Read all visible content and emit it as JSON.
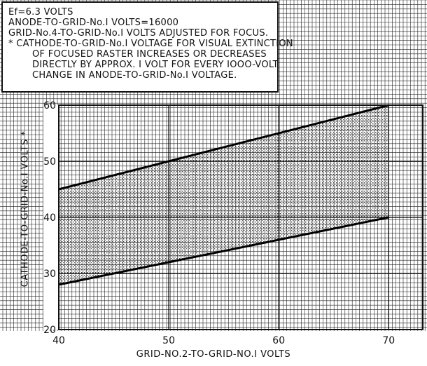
{
  "notes": {
    "line1": "Ef=6.3 VOLTS",
    "line2": "ANODE-TO-GRID-No.I VOLTS=16000",
    "line3": "GRID-No.4-TO-GRID-No.I VOLTS ADJUSTED FOR FOCUS.",
    "line4": "* CATHODE-TO-GRID-No.I VOLTAGE FOR VISUAL EXTINCTION",
    "line5": "OF FOCUSED RASTER INCREASES OR DECREASES",
    "line6": "DIRECTLY BY APPROX. I VOLT FOR EVERY IOOO-VOLT",
    "line7": "CHANGE IN ANODE-TO-GRID-No.I VOLTAGE."
  },
  "chart_data": {
    "type": "area",
    "xlabel": "GRID-NO.2-TO-GRID-NO.I VOLTS",
    "ylabel": "CATHODE-TO-GRID-No.I VOLTS *",
    "xlim": [
      40,
      70
    ],
    "ylim": [
      20,
      60
    ],
    "x_ticks": [
      "40",
      "50",
      "60",
      "70"
    ],
    "y_ticks": [
      "20",
      "30",
      "40",
      "50",
      "60"
    ],
    "grid": true,
    "series": [
      {
        "x": [
          40,
          70
        ],
        "values": [
          45,
          60
        ]
      },
      {
        "x": [
          40,
          70
        ],
        "values": [
          28,
          40
        ]
      }
    ],
    "colors": {
      "grid": "#222222",
      "band": "#555555",
      "line": "#000000"
    }
  }
}
